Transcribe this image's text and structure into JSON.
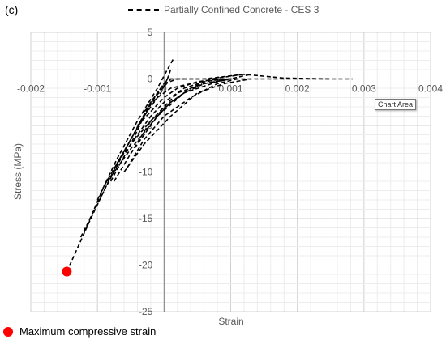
{
  "panel_label": "(c)",
  "tooltip": "Chart Area",
  "footnote": "Maximum compressive strain",
  "chart_data": {
    "type": "line",
    "title": "",
    "xlabel": "Strain",
    "ylabel": "Stress (MPa)",
    "xlim": [
      -0.002,
      0.004
    ],
    "ylim": [
      -25,
      5
    ],
    "x_ticks": [
      "-0.002",
      "-0.001",
      "0",
      "0.001",
      "0.002",
      "0.003",
      "0.004"
    ],
    "y_ticks": [
      "5",
      "0",
      "-5",
      "-10",
      "-15",
      "-20",
      "-25"
    ],
    "grid": true,
    "legend_position": "top",
    "series": [
      {
        "name": "Partially Confined Concrete - CES 3",
        "color": "#000000",
        "dashed": true,
        "curves": [
          {
            "x": [
              -0.00146,
              -0.0011,
              -0.0007,
              -0.0003,
              -5e-05,
              5e-05,
              0.0003,
              0.0008,
              0.0015,
              0.002,
              0.00283
            ],
            "y": [
              -20.7,
              -15,
              -9,
              -4,
              -1.5,
              0,
              0,
              0,
              0,
              0,
              0
            ]
          },
          {
            "x": [
              -0.00125,
              -0.0009,
              -0.0005,
              -0.0002,
              0.0,
              0.0002,
              0.0006,
              0.0012,
              0.0018,
              0.0025
            ],
            "y": [
              -17,
              -12,
              -6.5,
              -2.5,
              -0.5,
              0,
              0,
              0.5,
              0.1,
              0
            ]
          },
          {
            "x": [
              -0.0012,
              -0.0009,
              -0.0005,
              -0.0002,
              0.0001,
              0.0003
            ],
            "y": [
              -16.5,
              -11.5,
              -6.5,
              -2.5,
              0,
              0
            ]
          },
          {
            "x": [
              -0.001,
              -0.0007,
              -0.0004,
              -0.0001,
              5e-05,
              0.00015
            ],
            "y": [
              -13,
              -8.5,
              -4.5,
              -1,
              1,
              2.3
            ]
          },
          {
            "x": [
              -0.0008,
              -0.0005,
              -0.0003,
              -0.0001,
              5e-05,
              0.0001
            ],
            "y": [
              -11,
              -7,
              -4,
              -1.5,
              0,
              1
            ]
          },
          {
            "x": [
              -0.00075,
              -0.0005,
              -0.0002,
              0.0002,
              0.0006,
              0.001
            ],
            "y": [
              -11,
              -8,
              -4.5,
              -1.5,
              -0.5,
              0
            ]
          },
          {
            "x": [
              -0.00085,
              -0.0005,
              -0.0001,
              0.0003,
              0.0008,
              0.0013
            ],
            "y": [
              -11,
              -7.5,
              -4,
              -1.5,
              -0.3,
              0.5
            ]
          },
          {
            "x": [
              -0.0006,
              -0.0003,
              0.0001,
              0.0005,
              0.0009,
              0.0013
            ],
            "y": [
              -10,
              -7,
              -4,
              -1.5,
              -0.5,
              0
            ]
          },
          {
            "x": [
              -0.0007,
              -0.0005,
              -0.0002,
              0.0001,
              0.0004,
              0.0007,
              0.001,
              0.0012
            ],
            "y": [
              -9,
              -7,
              -4.5,
              -2.5,
              -1,
              0,
              0.3,
              0.5
            ]
          },
          {
            "x": [
              -0.00055,
              -0.0003,
              0.0,
              0.0004,
              0.0008,
              0.0011
            ],
            "y": [
              -9.5,
              -6.5,
              -4,
              -2,
              -0.5,
              0
            ]
          },
          {
            "x": [
              -0.0005,
              -0.0003,
              -0.0001,
              0.0001,
              0.0003,
              0.0006,
              0.001
            ],
            "y": [
              -8,
              -6,
              -4,
              -2.5,
              -1.5,
              -0.5,
              0
            ]
          },
          {
            "x": [
              -0.00045,
              -0.0002,
              0.0,
              0.0003,
              0.0006,
              0.0009
            ],
            "y": [
              -6.5,
              -4,
              -2.5,
              -1,
              -0.3,
              0
            ]
          },
          {
            "x": [
              -0.0004,
              -0.0002,
              0.0,
              0.0002,
              0.0005,
              0.0008
            ],
            "y": [
              -5,
              -3.5,
              -2,
              -1,
              -0.3,
              0
            ]
          },
          {
            "x": [
              -0.0003,
              -0.0001,
              0.0001,
              0.0004,
              0.0007,
              0.001
            ],
            "y": [
              -3.5,
              -2,
              -1,
              -0.5,
              -0.1,
              0
            ]
          }
        ]
      }
    ],
    "markers": [
      {
        "label": "Maximum compressive strain",
        "x": -0.00146,
        "y": -20.7,
        "color": "#ff0000"
      }
    ]
  }
}
